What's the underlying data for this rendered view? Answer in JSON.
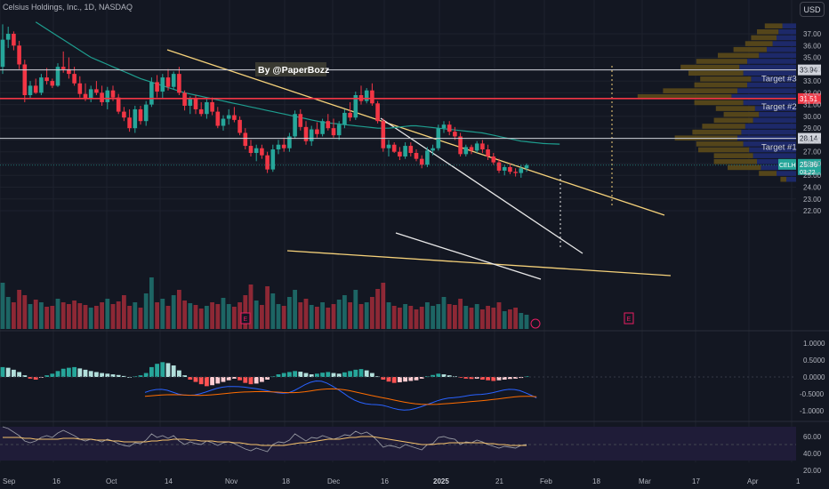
{
  "header": {
    "symbol_info": "Celsius Holdings, Inc., 1D, NASDAQ",
    "currency_button": "USD"
  },
  "annotation": "By @PaperBozz",
  "targets": [
    {
      "label": "Target #3",
      "price": 33.94,
      "price_label": "33.94",
      "color": "#d1d4dc"
    },
    {
      "label": "Target #2",
      "price": 31.51,
      "price_label": "31.51",
      "color": "#f23645"
    },
    {
      "label": "Target #1",
      "price": 28.14,
      "price_label": "28.14",
      "color": "#d1d4dc"
    }
  ],
  "last_price": {
    "symbol": "CELH",
    "price": 25.86,
    "price_label": "25.86",
    "countdown": "03:22"
  },
  "price_axis": {
    "labels": [
      "37.00",
      "36.00",
      "35.00",
      "34.00",
      "33.00",
      "32.00",
      "31.00",
      "30.00",
      "29.00",
      "28.00",
      "27.00",
      "26.00",
      "25.00",
      "24.00",
      "23.00",
      "22.00"
    ]
  },
  "macd_axis": {
    "labels": [
      "1.0000",
      "0.5000",
      "0.0000",
      "-0.5000",
      "-1.0000"
    ]
  },
  "rsi_axis": {
    "labels": [
      "60.00",
      "40.00",
      "20.00"
    ]
  },
  "time_axis": {
    "labels": [
      "Sep",
      "16",
      "Oct",
      "14",
      "Nov",
      "18",
      "Dec",
      "16",
      "2025",
      "21",
      "Feb",
      "18",
      "Mar",
      "17",
      "Apr",
      "1"
    ]
  },
  "event_markers": [
    "E",
    "E"
  ],
  "colors": {
    "bg": "#131722",
    "up": "#26a69a",
    "down": "#f23645",
    "ma": "#1e9e8f",
    "trend": "#f6d27a",
    "profile_up": "#1e2a6e",
    "profile_down": "#5c4a1a",
    "macd_line": "#2962ff",
    "signal_line": "#ff6d00",
    "rsi_line": "#7e57c2",
    "rsi_ma": "#f6c26b"
  },
  "chart_data": {
    "type": "candlestick",
    "title": "",
    "series": [
      {
        "name": "CELH",
        "ohlc": [
          [
            34.2,
            37.8,
            33.6,
            36.5
          ],
          [
            36.5,
            37.6,
            35.8,
            37.0
          ],
          [
            37.0,
            37.2,
            35.6,
            36.0
          ],
          [
            36.0,
            36.4,
            34.0,
            34.4
          ],
          [
            34.4,
            34.8,
            31.2,
            31.8
          ],
          [
            31.8,
            33.0,
            31.5,
            32.6
          ],
          [
            32.6,
            33.2,
            31.9,
            32.0
          ],
          [
            32.0,
            33.6,
            31.8,
            33.3
          ],
          [
            33.3,
            34.1,
            32.7,
            33.0
          ],
          [
            33.0,
            33.2,
            32.4,
            32.6
          ],
          [
            32.6,
            34.5,
            32.5,
            34.2
          ],
          [
            34.2,
            35.5,
            33.7,
            34.0
          ],
          [
            34.0,
            35.0,
            33.2,
            33.6
          ],
          [
            33.6,
            34.2,
            32.6,
            32.8
          ],
          [
            32.8,
            33.4,
            31.6,
            31.9
          ],
          [
            31.9,
            32.8,
            31.3,
            31.5
          ],
          [
            31.5,
            32.6,
            31.2,
            32.3
          ],
          [
            32.3,
            33.0,
            31.8,
            32.0
          ],
          [
            32.0,
            32.6,
            30.9,
            31.2
          ],
          [
            31.2,
            32.5,
            30.6,
            32.2
          ],
          [
            32.2,
            32.6,
            31.3,
            31.6
          ],
          [
            31.6,
            31.9,
            30.2,
            30.4
          ],
          [
            30.4,
            30.8,
            29.6,
            29.9
          ],
          [
            29.9,
            30.6,
            28.7,
            29.0
          ],
          [
            29.0,
            30.9,
            28.6,
            30.6
          ],
          [
            30.6,
            30.9,
            29.3,
            29.6
          ],
          [
            29.6,
            31.3,
            29.2,
            31.0
          ],
          [
            31.0,
            33.3,
            30.8,
            32.9
          ],
          [
            32.9,
            33.5,
            31.6,
            32.1
          ],
          [
            32.1,
            33.6,
            31.5,
            33.3
          ],
          [
            33.3,
            34.0,
            32.2,
            32.5
          ],
          [
            32.5,
            33.8,
            32.3,
            33.6
          ],
          [
            33.6,
            34.2,
            31.8,
            32.0
          ],
          [
            32.0,
            32.2,
            30.5,
            30.9
          ],
          [
            30.9,
            31.7,
            30.2,
            31.5
          ],
          [
            31.5,
            31.8,
            30.2,
            30.6
          ],
          [
            30.6,
            31.2,
            30.0,
            30.2
          ],
          [
            30.2,
            31.5,
            29.8,
            31.2
          ],
          [
            31.2,
            31.6,
            30.1,
            30.4
          ],
          [
            30.4,
            30.8,
            29.0,
            29.2
          ],
          [
            29.2,
            30.1,
            28.8,
            29.8
          ],
          [
            29.8,
            30.6,
            29.3,
            30.1
          ],
          [
            30.1,
            30.8,
            29.5,
            29.7
          ],
          [
            29.7,
            30.0,
            28.4,
            28.6
          ],
          [
            28.6,
            29.0,
            27.2,
            27.5
          ],
          [
            27.5,
            28.0,
            26.6,
            26.9
          ],
          [
            26.9,
            27.6,
            26.2,
            27.3
          ],
          [
            27.3,
            27.6,
            26.4,
            26.7
          ],
          [
            26.7,
            27.0,
            25.2,
            25.5
          ],
          [
            25.5,
            27.6,
            25.3,
            27.2
          ],
          [
            27.2,
            28.0,
            26.8,
            27.6
          ],
          [
            27.6,
            28.2,
            27.0,
            27.3
          ],
          [
            27.3,
            28.6,
            27.0,
            28.3
          ],
          [
            28.3,
            30.5,
            28.1,
            30.2
          ],
          [
            30.2,
            30.6,
            28.8,
            29.1
          ],
          [
            29.1,
            29.6,
            27.6,
            27.9
          ],
          [
            27.9,
            29.2,
            27.5,
            28.9
          ],
          [
            28.9,
            29.5,
            28.2,
            28.5
          ],
          [
            28.5,
            29.8,
            28.3,
            29.6
          ],
          [
            29.6,
            30.2,
            28.8,
            29.0
          ],
          [
            29.0,
            29.8,
            28.2,
            28.4
          ],
          [
            28.4,
            29.6,
            28.0,
            29.3
          ],
          [
            29.3,
            30.6,
            29.0,
            30.3
          ],
          [
            30.3,
            31.2,
            29.6,
            29.9
          ],
          [
            29.9,
            32.1,
            29.7,
            31.8
          ],
          [
            31.8,
            32.6,
            31.0,
            31.3
          ],
          [
            31.3,
            32.4,
            31.1,
            32.2
          ],
          [
            32.2,
            32.8,
            30.9,
            31.1
          ],
          [
            31.1,
            31.3,
            29.4,
            29.6
          ],
          [
            29.6,
            29.8,
            27.0,
            27.3
          ],
          [
            27.3,
            28.0,
            26.6,
            27.6
          ],
          [
            27.6,
            27.8,
            26.9,
            27.0
          ],
          [
            27.0,
            27.4,
            26.3,
            26.6
          ],
          [
            26.6,
            27.8,
            26.4,
            27.5
          ],
          [
            27.5,
            27.8,
            26.6,
            26.9
          ],
          [
            26.9,
            27.2,
            26.2,
            26.4
          ],
          [
            26.4,
            26.7,
            25.6,
            25.9
          ],
          [
            25.9,
            27.4,
            25.7,
            27.1
          ],
          [
            27.1,
            27.6,
            26.7,
            27.3
          ],
          [
            27.3,
            29.3,
            27.1,
            29.0
          ],
          [
            29.0,
            29.6,
            28.6,
            29.3
          ],
          [
            29.3,
            29.6,
            28.4,
            28.7
          ],
          [
            28.7,
            29.1,
            28.0,
            28.3
          ],
          [
            28.3,
            28.6,
            26.6,
            26.8
          ],
          [
            26.8,
            27.6,
            26.6,
            27.4
          ],
          [
            27.4,
            27.6,
            26.8,
            27.1
          ],
          [
            27.1,
            27.9,
            26.9,
            27.7
          ],
          [
            27.7,
            28.0,
            26.9,
            27.2
          ],
          [
            27.2,
            27.6,
            26.3,
            26.6
          ],
          [
            26.6,
            26.9,
            25.9,
            26.1
          ],
          [
            26.1,
            26.4,
            25.2,
            25.4
          ],
          [
            25.4,
            25.9,
            25.0,
            25.7
          ],
          [
            25.7,
            26.0,
            25.1,
            25.3
          ],
          [
            25.3,
            25.6,
            24.9,
            25.2
          ],
          [
            25.2,
            25.9,
            24.8,
            25.6
          ],
          [
            25.6,
            26.0,
            25.3,
            25.86
          ]
        ]
      }
    ],
    "moving_average": [
      38.0,
      37.7,
      37.4,
      37.1,
      36.8,
      36.5,
      36.2,
      35.9,
      35.6,
      35.3,
      35.0,
      34.8,
      34.6,
      34.4,
      34.2,
      34.0,
      33.8,
      33.6,
      33.4,
      33.2,
      33.05,
      32.9,
      32.75,
      32.6,
      32.45,
      32.3,
      32.15,
      32.0,
      31.9,
      31.8,
      31.7,
      31.6,
      31.5,
      31.4,
      31.3,
      31.2,
      31.1,
      31.0,
      30.9,
      30.8,
      30.7,
      30.6,
      30.5,
      30.4,
      30.3,
      30.2,
      30.1,
      30.0,
      29.9,
      29.8,
      29.7,
      29.6,
      29.5,
      29.45,
      29.4,
      29.35,
      29.3,
      29.25,
      29.2,
      29.15,
      29.1,
      29.05,
      29.0,
      29.0,
      29.0,
      29.05,
      29.1,
      29.15,
      29.2,
      29.2,
      29.15,
      29.1,
      29.05,
      29.0,
      28.95,
      28.9,
      28.85,
      28.8,
      28.75,
      28.7,
      28.65,
      28.6,
      28.5,
      28.4,
      28.3,
      28.2,
      28.1,
      28.0,
      27.9,
      27.85,
      27.8,
      27.75,
      27.7,
      27.68,
      27.66,
      27.65
    ],
    "volume": [
      52,
      36,
      30,
      44,
      38,
      28,
      33,
      30,
      25,
      26,
      34,
      30,
      28,
      32,
      29,
      27,
      24,
      26,
      30,
      34,
      28,
      31,
      38,
      26,
      30,
      24,
      40,
      58,
      30,
      34,
      26,
      38,
      44,
      32,
      29,
      27,
      23,
      26,
      30,
      28,
      35,
      28,
      25,
      30,
      38,
      50,
      32,
      27,
      48,
      40,
      28,
      26,
      36,
      44,
      30,
      34,
      27,
      25,
      30,
      24,
      28,
      33,
      38,
      30,
      44,
      28,
      30,
      36,
      45,
      52,
      30,
      26,
      24,
      28,
      26,
      22,
      25,
      30,
      26,
      28,
      36,
      28,
      27,
      34,
      26,
      24,
      28,
      22,
      26,
      24,
      30,
      20,
      22,
      24,
      18,
      16
    ],
    "macd_histogram": [
      0.3,
      0.28,
      0.22,
      0.15,
      0.05,
      -0.05,
      -0.08,
      -0.02,
      0.05,
      0.1,
      0.18,
      0.25,
      0.28,
      0.3,
      0.26,
      0.22,
      0.18,
      0.15,
      0.12,
      0.1,
      0.08,
      0.06,
      0.03,
      0.0,
      0.02,
      0.05,
      0.12,
      0.3,
      0.4,
      0.45,
      0.42,
      0.35,
      0.2,
      0.05,
      -0.08,
      -0.15,
      -0.22,
      -0.28,
      -0.25,
      -0.2,
      -0.15,
      -0.1,
      -0.05,
      -0.1,
      -0.18,
      -0.22,
      -0.2,
      -0.15,
      -0.08,
      0.02,
      0.08,
      0.12,
      0.15,
      0.18,
      0.16,
      0.12,
      0.08,
      0.1,
      0.13,
      0.15,
      0.12,
      0.1,
      0.14,
      0.18,
      0.22,
      0.24,
      0.2,
      0.12,
      0.02,
      -0.08,
      -0.14,
      -0.18,
      -0.16,
      -0.14,
      -0.12,
      -0.1,
      -0.05,
      0.02,
      0.06,
      0.1,
      0.08,
      0.05,
      0.02,
      -0.02,
      -0.05,
      -0.06,
      -0.05,
      -0.08,
      -0.1,
      -0.12,
      -0.1,
      -0.08,
      -0.06,
      -0.05,
      -0.03,
      0.02
    ],
    "rsi": [
      62,
      60,
      56,
      52,
      46,
      44,
      46,
      50,
      52,
      50,
      55,
      58,
      55,
      52,
      48,
      46,
      48,
      47,
      45,
      48,
      46,
      43,
      41,
      40,
      44,
      43,
      47,
      54,
      50,
      52,
      49,
      52,
      46,
      42,
      45,
      43,
      42,
      46,
      44,
      41,
      44,
      45,
      43,
      40,
      37,
      35,
      38,
      36,
      34,
      42,
      45,
      44,
      47,
      54,
      50,
      46,
      50,
      49,
      52,
      50,
      48,
      50,
      53,
      52,
      57,
      54,
      56,
      52,
      46,
      39,
      41,
      40,
      38,
      42,
      40,
      38,
      36,
      42,
      43,
      50,
      51,
      49,
      48,
      42,
      45,
      44,
      47,
      45,
      42,
      40,
      38,
      40,
      39,
      38,
      41,
      42
    ],
    "rsi_ma": [
      50,
      50,
      50,
      50,
      49,
      49,
      48,
      48,
      48,
      48,
      48,
      49,
      49,
      49,
      48,
      48,
      48,
      47,
      47,
      47,
      46,
      46,
      45,
      45,
      45,
      45,
      45,
      46,
      46,
      47,
      47,
      48,
      48,
      48,
      47,
      47,
      46,
      46,
      46,
      45,
      45,
      45,
      44,
      44,
      43,
      42,
      42,
      41,
      41,
      41,
      41,
      41,
      42,
      43,
      44,
      44,
      45,
      46,
      47,
      48,
      48,
      48,
      49,
      50,
      50,
      51,
      51,
      51,
      50,
      49,
      48,
      47,
      46,
      45,
      44,
      43,
      42,
      42,
      42,
      43,
      43,
      44,
      44,
      44,
      44,
      44,
      44,
      44,
      43,
      43,
      42,
      42,
      41,
      41,
      41,
      41
    ],
    "volume_profile": [
      {
        "price": 37.5,
        "up": 14,
        "down": 18
      },
      {
        "price": 37.0,
        "up": 18,
        "down": 22
      },
      {
        "price": 36.5,
        "up": 20,
        "down": 26
      },
      {
        "price": 36.0,
        "up": 24,
        "down": 28
      },
      {
        "price": 35.5,
        "up": 30,
        "down": 34
      },
      {
        "price": 35.0,
        "up": 38,
        "down": 42
      },
      {
        "price": 34.5,
        "up": 50,
        "down": 52
      },
      {
        "price": 34.0,
        "up": 58,
        "down": 60
      },
      {
        "price": 33.5,
        "up": 54,
        "down": 56
      },
      {
        "price": 33.0,
        "up": 46,
        "down": 52
      },
      {
        "price": 32.5,
        "up": 50,
        "down": 54
      },
      {
        "price": 32.0,
        "up": 60,
        "down": 76
      },
      {
        "price": 31.5,
        "up": 66,
        "down": 96
      },
      {
        "price": 31.0,
        "up": 54,
        "down": 50
      },
      {
        "price": 30.5,
        "up": 42,
        "down": 40
      },
      {
        "price": 30.0,
        "up": 38,
        "down": 36
      },
      {
        "price": 29.5,
        "up": 44,
        "down": 40
      },
      {
        "price": 29.0,
        "up": 52,
        "down": 44
      },
      {
        "price": 28.5,
        "up": 56,
        "down": 50
      },
      {
        "price": 28.0,
        "up": 60,
        "down": 64
      },
      {
        "price": 27.5,
        "up": 54,
        "down": 48
      },
      {
        "price": 27.0,
        "up": 48,
        "down": 52
      },
      {
        "price": 26.5,
        "up": 44,
        "down": 40
      },
      {
        "price": 26.0,
        "up": 40,
        "down": 44
      },
      {
        "price": 25.5,
        "up": 36,
        "down": 34
      },
      {
        "price": 25.0,
        "up": 20,
        "down": 18
      },
      {
        "price": 24.5,
        "up": 10,
        "down": 6
      }
    ]
  }
}
